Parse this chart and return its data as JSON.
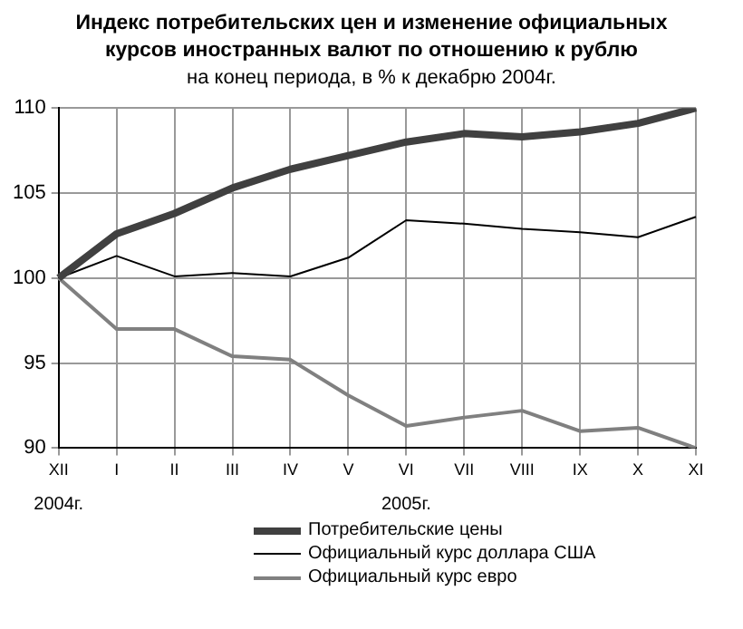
{
  "chart_data": {
    "type": "line",
    "title": "Индекс потребительских цен и изменение официальных курсов иностранных валют по отношению к рублю",
    "subtitle": "на конец периода, в % к декабрю 2004г.",
    "categories": [
      "XII",
      "I",
      "II",
      "III",
      "IV",
      "V",
      "VI",
      "VII",
      "VIII",
      "IX",
      "X",
      "XI"
    ],
    "series": [
      {
        "name": "Потребительские цены",
        "color": "#404040",
        "values": [
          100,
          102.6,
          103.8,
          105.3,
          106.4,
          107.2,
          108.0,
          108.5,
          108.3,
          108.6,
          109.1,
          110.0
        ]
      },
      {
        "name": "Официальный курс доллара США",
        "color": "#000000",
        "values": [
          100,
          101.3,
          100.1,
          100.3,
          100.1,
          101.2,
          103.4,
          103.2,
          102.9,
          102.7,
          102.4,
          103.6
        ]
      },
      {
        "name": "Официальный курс евро",
        "color": "#808080",
        "values": [
          100,
          97.0,
          97.0,
          95.4,
          95.2,
          93.1,
          91.3,
          91.8,
          92.2,
          91.0,
          91.2,
          90.0
        ]
      }
    ],
    "ylim": [
      90,
      110
    ],
    "yticks": [
      90,
      95,
      100,
      105,
      110
    ],
    "grid": true,
    "legend": "bottom",
    "marker": "none",
    "line_style": "solid",
    "annotations": [
      "2004г.",
      "2005г."
    ]
  }
}
